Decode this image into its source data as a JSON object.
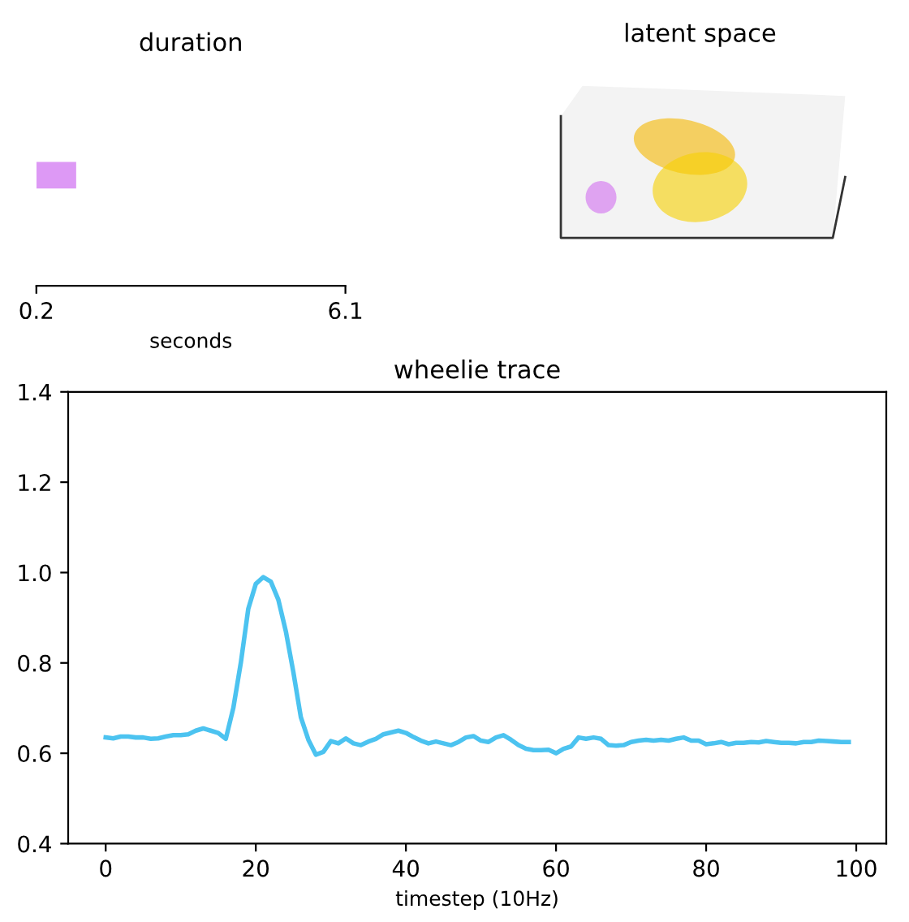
{
  "chart_data": [
    {
      "type": "bar",
      "title": "duration",
      "xlabel": "seconds",
      "orientation": "horizontal",
      "categories": [
        null
      ],
      "base": [
        0.2
      ],
      "values": [
        0.76
      ],
      "color": "#dd99f5",
      "xlim": [
        0.2,
        6.1
      ],
      "xticks": [
        {
          "value": 0.2,
          "label": "0.2"
        },
        {
          "value": 6.1,
          "label": "6.1"
        }
      ],
      "tick_labels": "x",
      "grid": false
    },
    {
      "type": "other",
      "title": "latent space"
    },
    {
      "type": "line",
      "title": "wheelie trace",
      "xlabel": "timestep (10Hz)",
      "color": "#4cc3f0",
      "x": [
        0,
        1,
        2,
        3,
        4,
        5,
        6,
        7,
        8,
        9,
        10,
        11,
        12,
        13,
        14,
        15,
        16,
        17,
        18,
        19,
        20,
        21,
        22,
        23,
        24,
        25,
        26,
        27,
        28,
        29,
        30,
        31,
        32,
        33,
        34,
        35,
        36,
        37,
        38,
        39,
        40,
        41,
        42,
        43,
        44,
        45,
        46,
        47,
        48,
        49,
        50,
        51,
        52,
        53,
        54,
        55,
        56,
        57,
        58,
        59,
        60,
        61,
        62,
        63,
        64,
        65,
        66,
        67,
        68,
        69,
        70,
        71,
        72,
        73,
        74,
        75,
        76,
        77,
        78,
        79,
        80,
        81,
        82,
        83,
        84,
        85,
        86,
        87,
        88,
        89,
        90,
        91,
        92,
        93,
        94,
        95,
        96,
        97,
        98,
        99
      ],
      "values": [
        0.635,
        0.633,
        0.637,
        0.637,
        0.635,
        0.635,
        0.632,
        0.633,
        0.637,
        0.64,
        0.64,
        0.642,
        0.65,
        0.655,
        0.65,
        0.645,
        0.632,
        0.7,
        0.8,
        0.92,
        0.975,
        0.99,
        0.98,
        0.94,
        0.87,
        0.78,
        0.68,
        0.63,
        0.597,
        0.603,
        0.627,
        0.622,
        0.633,
        0.622,
        0.618,
        0.626,
        0.632,
        0.642,
        0.646,
        0.65,
        0.645,
        0.636,
        0.628,
        0.622,
        0.626,
        0.622,
        0.618,
        0.625,
        0.635,
        0.638,
        0.628,
        0.625,
        0.635,
        0.64,
        0.63,
        0.618,
        0.61,
        0.607,
        0.607,
        0.608,
        0.6,
        0.61,
        0.615,
        0.635,
        0.632,
        0.635,
        0.632,
        0.618,
        0.617,
        0.618,
        0.625,
        0.628,
        0.63,
        0.628,
        0.63,
        0.628,
        0.632,
        0.635,
        0.628,
        0.628,
        0.62,
        0.622,
        0.625,
        0.62,
        0.623,
        0.623,
        0.625,
        0.624,
        0.627,
        0.625,
        0.623,
        0.623,
        0.622,
        0.625,
        0.625,
        0.628,
        0.627,
        0.626,
        0.625,
        0.625
      ],
      "xlim": [
        -5,
        104
      ],
      "xticks": [
        0,
        20,
        40,
        60,
        80,
        100
      ],
      "ylim": [
        0.4,
        1.4
      ],
      "yticks": [
        0.4,
        0.6,
        0.8,
        {
          "value": 1.0,
          "label": "1.0"
        },
        1.2,
        1.4
      ],
      "grid": false,
      "marker": "none",
      "line_style": "solid"
    }
  ]
}
